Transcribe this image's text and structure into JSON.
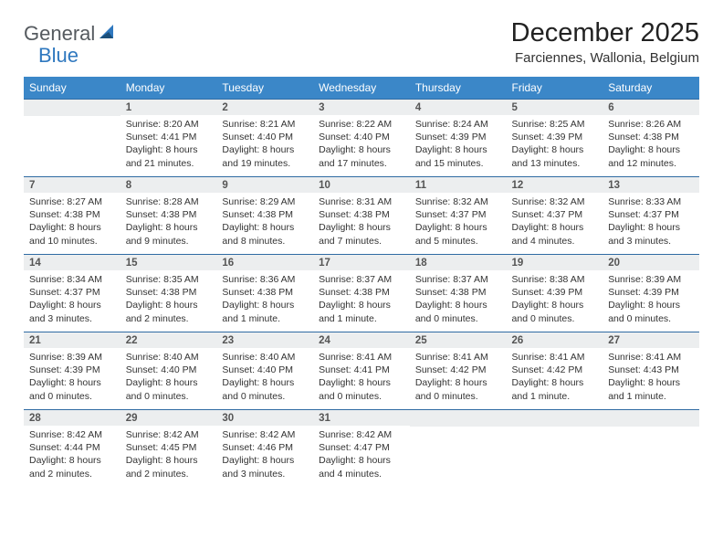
{
  "logo": {
    "text_left": "General",
    "text_right": "Blue"
  },
  "title": "December 2025",
  "location": "Farciennes, Wallonia, Belgium",
  "colors": {
    "header_bg": "#3b87c8",
    "header_text": "#ffffff",
    "daynum_bg": "#eceeef",
    "cell_border": "#2f6ba3",
    "logo_gray": "#555a5f",
    "logo_blue": "#2f78bf"
  },
  "day_headers": [
    "Sunday",
    "Monday",
    "Tuesday",
    "Wednesday",
    "Thursday",
    "Friday",
    "Saturday"
  ],
  "weeks": [
    [
      {
        "num": "",
        "lines": []
      },
      {
        "num": "1",
        "lines": [
          "Sunrise: 8:20 AM",
          "Sunset: 4:41 PM",
          "Daylight: 8 hours",
          "and 21 minutes."
        ]
      },
      {
        "num": "2",
        "lines": [
          "Sunrise: 8:21 AM",
          "Sunset: 4:40 PM",
          "Daylight: 8 hours",
          "and 19 minutes."
        ]
      },
      {
        "num": "3",
        "lines": [
          "Sunrise: 8:22 AM",
          "Sunset: 4:40 PM",
          "Daylight: 8 hours",
          "and 17 minutes."
        ]
      },
      {
        "num": "4",
        "lines": [
          "Sunrise: 8:24 AM",
          "Sunset: 4:39 PM",
          "Daylight: 8 hours",
          "and 15 minutes."
        ]
      },
      {
        "num": "5",
        "lines": [
          "Sunrise: 8:25 AM",
          "Sunset: 4:39 PM",
          "Daylight: 8 hours",
          "and 13 minutes."
        ]
      },
      {
        "num": "6",
        "lines": [
          "Sunrise: 8:26 AM",
          "Sunset: 4:38 PM",
          "Daylight: 8 hours",
          "and 12 minutes."
        ]
      }
    ],
    [
      {
        "num": "7",
        "lines": [
          "Sunrise: 8:27 AM",
          "Sunset: 4:38 PM",
          "Daylight: 8 hours",
          "and 10 minutes."
        ]
      },
      {
        "num": "8",
        "lines": [
          "Sunrise: 8:28 AM",
          "Sunset: 4:38 PM",
          "Daylight: 8 hours",
          "and 9 minutes."
        ]
      },
      {
        "num": "9",
        "lines": [
          "Sunrise: 8:29 AM",
          "Sunset: 4:38 PM",
          "Daylight: 8 hours",
          "and 8 minutes."
        ]
      },
      {
        "num": "10",
        "lines": [
          "Sunrise: 8:31 AM",
          "Sunset: 4:38 PM",
          "Daylight: 8 hours",
          "and 7 minutes."
        ]
      },
      {
        "num": "11",
        "lines": [
          "Sunrise: 8:32 AM",
          "Sunset: 4:37 PM",
          "Daylight: 8 hours",
          "and 5 minutes."
        ]
      },
      {
        "num": "12",
        "lines": [
          "Sunrise: 8:32 AM",
          "Sunset: 4:37 PM",
          "Daylight: 8 hours",
          "and 4 minutes."
        ]
      },
      {
        "num": "13",
        "lines": [
          "Sunrise: 8:33 AM",
          "Sunset: 4:37 PM",
          "Daylight: 8 hours",
          "and 3 minutes."
        ]
      }
    ],
    [
      {
        "num": "14",
        "lines": [
          "Sunrise: 8:34 AM",
          "Sunset: 4:37 PM",
          "Daylight: 8 hours",
          "and 3 minutes."
        ]
      },
      {
        "num": "15",
        "lines": [
          "Sunrise: 8:35 AM",
          "Sunset: 4:38 PM",
          "Daylight: 8 hours",
          "and 2 minutes."
        ]
      },
      {
        "num": "16",
        "lines": [
          "Sunrise: 8:36 AM",
          "Sunset: 4:38 PM",
          "Daylight: 8 hours",
          "and 1 minute."
        ]
      },
      {
        "num": "17",
        "lines": [
          "Sunrise: 8:37 AM",
          "Sunset: 4:38 PM",
          "Daylight: 8 hours",
          "and 1 minute."
        ]
      },
      {
        "num": "18",
        "lines": [
          "Sunrise: 8:37 AM",
          "Sunset: 4:38 PM",
          "Daylight: 8 hours",
          "and 0 minutes."
        ]
      },
      {
        "num": "19",
        "lines": [
          "Sunrise: 8:38 AM",
          "Sunset: 4:39 PM",
          "Daylight: 8 hours",
          "and 0 minutes."
        ]
      },
      {
        "num": "20",
        "lines": [
          "Sunrise: 8:39 AM",
          "Sunset: 4:39 PM",
          "Daylight: 8 hours",
          "and 0 minutes."
        ]
      }
    ],
    [
      {
        "num": "21",
        "lines": [
          "Sunrise: 8:39 AM",
          "Sunset: 4:39 PM",
          "Daylight: 8 hours",
          "and 0 minutes."
        ]
      },
      {
        "num": "22",
        "lines": [
          "Sunrise: 8:40 AM",
          "Sunset: 4:40 PM",
          "Daylight: 8 hours",
          "and 0 minutes."
        ]
      },
      {
        "num": "23",
        "lines": [
          "Sunrise: 8:40 AM",
          "Sunset: 4:40 PM",
          "Daylight: 8 hours",
          "and 0 minutes."
        ]
      },
      {
        "num": "24",
        "lines": [
          "Sunrise: 8:41 AM",
          "Sunset: 4:41 PM",
          "Daylight: 8 hours",
          "and 0 minutes."
        ]
      },
      {
        "num": "25",
        "lines": [
          "Sunrise: 8:41 AM",
          "Sunset: 4:42 PM",
          "Daylight: 8 hours",
          "and 0 minutes."
        ]
      },
      {
        "num": "26",
        "lines": [
          "Sunrise: 8:41 AM",
          "Sunset: 4:42 PM",
          "Daylight: 8 hours",
          "and 1 minute."
        ]
      },
      {
        "num": "27",
        "lines": [
          "Sunrise: 8:41 AM",
          "Sunset: 4:43 PM",
          "Daylight: 8 hours",
          "and 1 minute."
        ]
      }
    ],
    [
      {
        "num": "28",
        "lines": [
          "Sunrise: 8:42 AM",
          "Sunset: 4:44 PM",
          "Daylight: 8 hours",
          "and 2 minutes."
        ]
      },
      {
        "num": "29",
        "lines": [
          "Sunrise: 8:42 AM",
          "Sunset: 4:45 PM",
          "Daylight: 8 hours",
          "and 2 minutes."
        ]
      },
      {
        "num": "30",
        "lines": [
          "Sunrise: 8:42 AM",
          "Sunset: 4:46 PM",
          "Daylight: 8 hours",
          "and 3 minutes."
        ]
      },
      {
        "num": "31",
        "lines": [
          "Sunrise: 8:42 AM",
          "Sunset: 4:47 PM",
          "Daylight: 8 hours",
          "and 4 minutes."
        ]
      },
      {
        "num": "",
        "lines": []
      },
      {
        "num": "",
        "lines": []
      },
      {
        "num": "",
        "lines": []
      }
    ]
  ]
}
